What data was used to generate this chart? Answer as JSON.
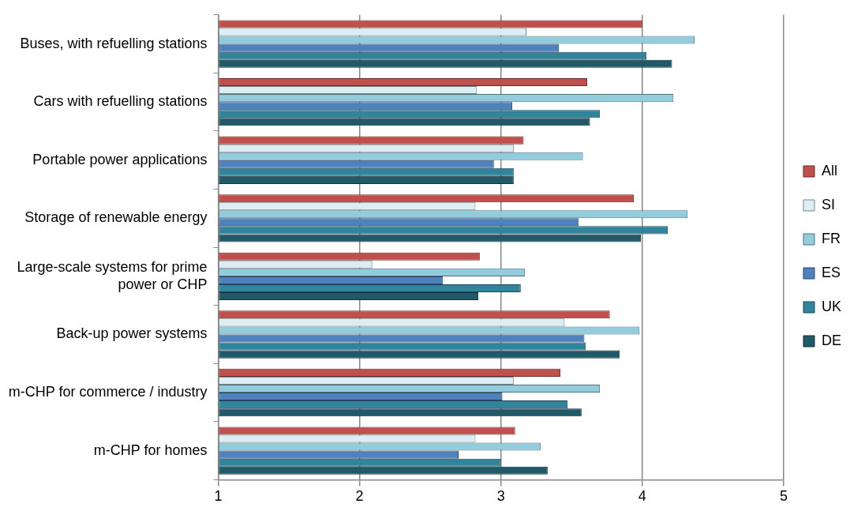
{
  "chart_data": {
    "type": "bar",
    "orientation": "horizontal",
    "categories": [
      "Buses, with refuelling stations",
      "Cars with refuelling stations",
      "Portable power applications",
      "Storage of renewable energy",
      "Large-scale systems for prime power or CHP",
      "Back-up power systems",
      "m-CHP for commerce / industry",
      "m-CHP for homes"
    ],
    "series": [
      {
        "name": "All",
        "color": "#c0504d",
        "values": [
          4.0,
          3.61,
          3.16,
          3.94,
          2.85,
          3.77,
          3.42,
          3.1
        ]
      },
      {
        "name": "SI",
        "color": "#dbeef4",
        "values": [
          3.18,
          2.83,
          3.09,
          2.82,
          2.09,
          3.45,
          3.09,
          2.82
        ]
      },
      {
        "name": "FR",
        "color": "#93cddd",
        "values": [
          4.37,
          4.22,
          3.58,
          4.32,
          3.17,
          3.98,
          3.7,
          3.28
        ]
      },
      {
        "name": "ES",
        "color": "#4f81bd",
        "values": [
          3.41,
          3.08,
          2.95,
          3.55,
          2.59,
          3.59,
          3.01,
          2.7
        ]
      },
      {
        "name": "UK",
        "color": "#31849b",
        "values": [
          4.03,
          3.7,
          3.09,
          4.18,
          3.14,
          3.6,
          3.47,
          3.0
        ]
      },
      {
        "name": "DE",
        "color": "#215968",
        "values": [
          4.21,
          3.63,
          3.09,
          3.99,
          2.84,
          3.84,
          3.57,
          3.33
        ]
      }
    ],
    "xlim": [
      1,
      5
    ],
    "xticks": [
      1,
      2,
      3,
      4,
      5
    ],
    "grid": "x",
    "legend": "right"
  }
}
